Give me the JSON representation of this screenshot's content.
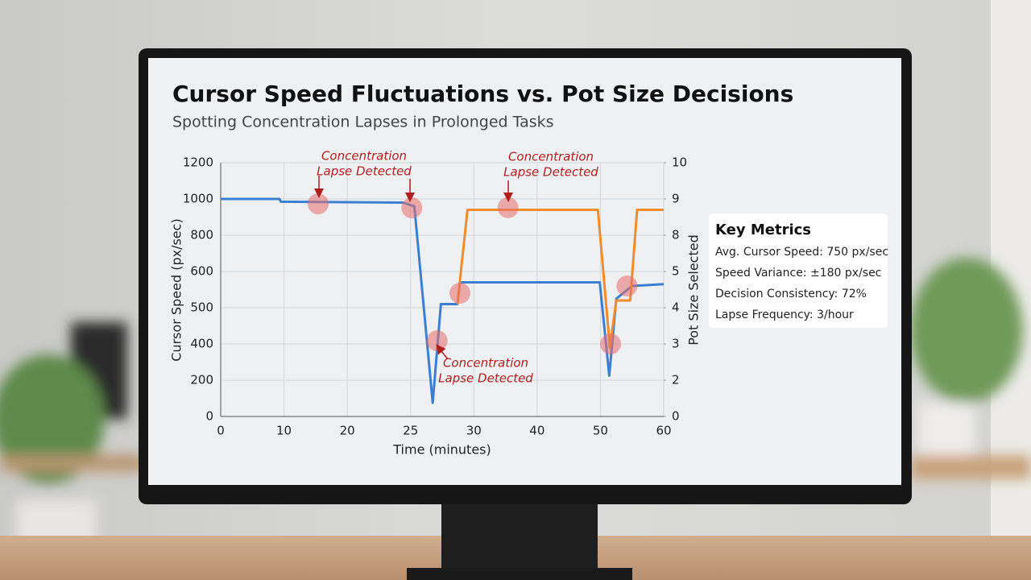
{
  "chart_data": {
    "type": "line",
    "title": "Cursor Speed Fluctuations vs. Pot Size Decisions",
    "subtitle": "Spotting Concentration Lapses in Prolonged Tasks",
    "xlabel": "Time (minutes)",
    "ylabel": "Cursor Speed (px/sec)",
    "y2label": "Pot Size Selected",
    "xlim": [
      0,
      60
    ],
    "xticks": [
      0,
      10,
      20,
      25,
      30,
      40,
      50,
      60
    ],
    "ylim": [
      0,
      1200
    ],
    "yticks": [
      0,
      200,
      400,
      500,
      600,
      800,
      1000,
      1200
    ],
    "y2lim": [
      0,
      10
    ],
    "y2ticks": [
      0,
      2,
      3,
      4,
      5,
      8,
      9,
      10
    ],
    "grid": true,
    "series": [
      {
        "name": "Cursor Speed",
        "color": "#3b7fd0",
        "x": [
          0,
          9.3,
          9.5,
          24.4,
          25.3,
          26.75,
          27.4,
          28.7,
          28.9,
          37.8,
          49.9,
          51.4,
          52.5,
          55,
          60
        ],
        "values": [
          1000,
          1000,
          985,
          980,
          960,
          75,
          510,
          510,
          570,
          570,
          570,
          225,
          525,
          560,
          565
        ]
      },
      {
        "name": "Pot Size",
        "color": "#f08c2a",
        "axis": "y2",
        "x": [
          28.7,
          29.5,
          49.6,
          51.5,
          52.5,
          54.7,
          55.8,
          60
        ],
        "values": [
          4.1,
          8.7,
          8.7,
          2.9,
          4.2,
          4.2,
          8.7,
          8.7
        ]
      }
    ],
    "lapse_markers": [
      {
        "x": 15.4,
        "y": 973
      },
      {
        "x": 25.1,
        "y": 951
      },
      {
        "x": 27.1,
        "y": 409
      },
      {
        "x": 35.4,
        "y": 8.76,
        "axis": "y2"
      },
      {
        "x": 28.9,
        "y": 4.4,
        "axis": "y2"
      },
      {
        "x": 51.6,
        "y": 3.0,
        "axis": "y2"
      },
      {
        "x": 54.2,
        "y": 4.6,
        "axis": "y2"
      }
    ],
    "annotations": [
      {
        "lines": [
          "Concentration",
          "Lapse Detected"
        ]
      },
      {
        "lines": [
          "Concentration",
          "Lapse Detected"
        ]
      },
      {
        "lines": [
          "Concentration",
          "Lapse Detected"
        ]
      }
    ],
    "metrics": {
      "title": "Key Metrics",
      "items": [
        "Avg. Cursor Speed: 750 px/sec",
        "Speed Variance: ±180 px/sec",
        "Decision Consistency: 72%",
        "Lapse Frequency: 3/hour"
      ]
    }
  }
}
